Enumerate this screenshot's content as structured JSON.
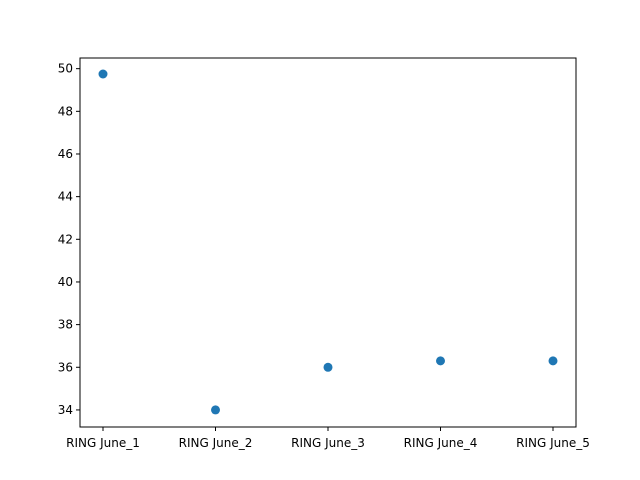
{
  "chart_data": {
    "type": "scatter",
    "x": [
      "RING June_1",
      "RING June_2",
      "RING June_3",
      "RING June_4",
      "RING June_5"
    ],
    "series": [
      {
        "values": [
          49.75,
          34.0,
          36.0,
          36.3,
          36.3
        ]
      }
    ],
    "title": "",
    "xlabel": "",
    "ylabel": "",
    "ylim": [
      33.2,
      50.5
    ],
    "yticks": [
      34,
      36,
      38,
      40,
      42,
      44,
      46,
      48,
      50
    ],
    "ytick_labels": [
      "34",
      "36",
      "38",
      "40",
      "42",
      "44",
      "46",
      "48",
      "50"
    ],
    "grid": false,
    "legend": "none",
    "colors": {
      "marker": "#1f77b4",
      "axes": "#000000",
      "background": "#ffffff"
    }
  }
}
